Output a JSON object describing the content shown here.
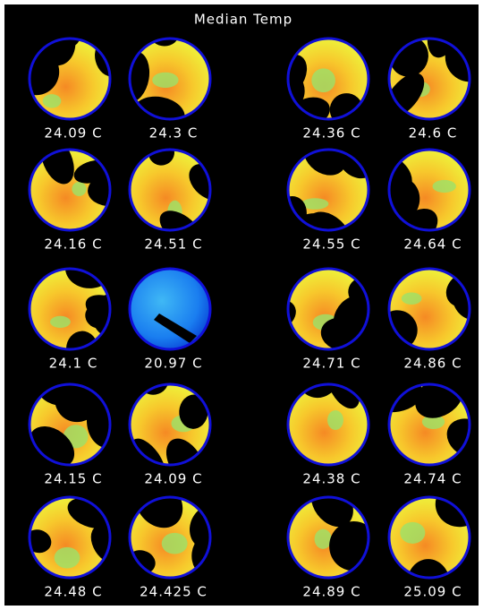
{
  "title": "Median Temp",
  "wells": [
    {
      "label": "24.09 C"
    },
    {
      "label": "24.3 C"
    },
    {
      "label": "24.36 C"
    },
    {
      "label": "24.6 C"
    },
    {
      "label": "24.16 C"
    },
    {
      "label": "24.51 C"
    },
    {
      "label": "24.55 C"
    },
    {
      "label": "24.64 C"
    },
    {
      "label": "24.1 C"
    },
    {
      "label": "20.97 C"
    },
    {
      "label": "24.71 C"
    },
    {
      "label": "24.86 C"
    },
    {
      "label": "24.15 C"
    },
    {
      "label": "24.09 C"
    },
    {
      "label": "24.38 C"
    },
    {
      "label": "24.74 C"
    },
    {
      "label": "24.48 C"
    },
    {
      "label": "24.425 C"
    },
    {
      "label": "24.89 C"
    },
    {
      "label": "25.09 C"
    }
  ]
}
